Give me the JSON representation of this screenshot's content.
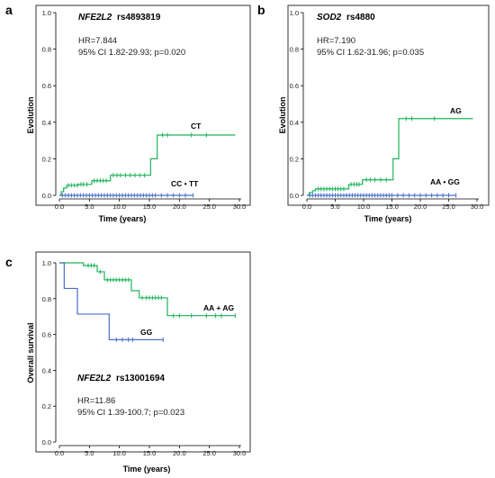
{
  "chart_data": [
    {
      "panel_label": "a",
      "type": "line",
      "step": true,
      "gene": "NFE2L2",
      "snp": "rs4893819",
      "stats": {
        "hr": "HR=7.844",
        "ci": "95% CI 1.82-29.93; p=0.020"
      },
      "xlabel": "Time (years)",
      "ylabel": "Evolution",
      "xlim": [
        0,
        30
      ],
      "ylim": [
        0,
        1.0
      ],
      "xticks": [
        "0.0",
        "5.0",
        "10.0",
        "15.0",
        "20.0",
        "25.0",
        "30.0"
      ],
      "yticks": [
        "0.0",
        "0.2",
        "0.4",
        "0.6",
        "0.8",
        "1.0"
      ],
      "series": [
        {
          "name": "CT",
          "color": "#1db35a",
          "x": [
            0,
            0.3,
            0.7,
            1.2,
            3.2,
            5.4,
            8.5,
            15.2,
            16.3,
            29.3
          ],
          "y": [
            0,
            0.02,
            0.04,
            0.055,
            0.06,
            0.08,
            0.11,
            0.2,
            0.33,
            0.33
          ],
          "censored_x": [
            1.5,
            2.0,
            2.5,
            3.0,
            3.6,
            4.0,
            4.6,
            5.8,
            6.3,
            6.8,
            7.3,
            7.8,
            9.0,
            9.6,
            10.2,
            11.0,
            11.8,
            12.6,
            13.4,
            14.2,
            17.2,
            18.0,
            22.0,
            24.5
          ]
        },
        {
          "name": "CC • TT",
          "color": "#4a6fc9",
          "x": [
            0,
            22.3
          ],
          "y": [
            0,
            0
          ],
          "censored_x": [
            0.5,
            1.0,
            1.5,
            2.0,
            2.5,
            3.0,
            3.5,
            4.0,
            4.5,
            5.0,
            5.5,
            6.0,
            6.5,
            7.0,
            7.5,
            8.0,
            8.5,
            9.0,
            9.5,
            10.0,
            10.5,
            11.0,
            11.5,
            12.0,
            12.5,
            13.0,
            13.5,
            14.0,
            14.5,
            15.0,
            15.5,
            16.0,
            17.0,
            18.0,
            19.0,
            20.0,
            21.0,
            22.3
          ]
        }
      ]
    },
    {
      "panel_label": "b",
      "type": "line",
      "step": true,
      "gene": "SOD2",
      "snp": "rs4880",
      "stats": {
        "hr": "HR=7.190",
        "ci": "95% CI 1.62-31.96; p=0.035"
      },
      "xlabel": "Time (years)",
      "ylabel": "Evolution",
      "xlim": [
        0,
        30
      ],
      "ylim": [
        0,
        1.0
      ],
      "xticks": [
        "0.0",
        "5.0",
        "10.0",
        "15.0",
        "20.0",
        "25.0",
        "30.0"
      ],
      "yticks": [
        "0.0",
        "0.2",
        "0.4",
        "0.6",
        "0.8",
        "1.0"
      ],
      "series": [
        {
          "name": "AG",
          "color": "#1db35a",
          "x": [
            0,
            0.4,
            1.0,
            1.5,
            7.4,
            9.8,
            15.2,
            16.2,
            29.3
          ],
          "y": [
            0,
            0.015,
            0.025,
            0.035,
            0.06,
            0.085,
            0.2,
            0.42,
            0.42
          ],
          "censored_x": [
            2.0,
            2.5,
            3.0,
            3.5,
            4.0,
            4.5,
            5.0,
            5.5,
            6.0,
            6.5,
            7.8,
            8.3,
            8.8,
            9.2,
            10.5,
            11.2,
            12.0,
            13.0,
            14.0,
            17.5,
            18.5,
            22.5
          ]
        },
        {
          "name": "AA • GG",
          "color": "#4a6fc9",
          "x": [
            0,
            26.3
          ],
          "y": [
            0,
            0
          ],
          "censored_x": [
            0.5,
            1.0,
            1.5,
            2.0,
            2.5,
            3.0,
            3.5,
            4.0,
            4.5,
            5.0,
            5.5,
            6.0,
            6.5,
            7.0,
            7.5,
            8.0,
            8.5,
            9.0,
            9.5,
            10.0,
            10.5,
            11.0,
            11.5,
            12.0,
            12.5,
            13.0,
            13.5,
            14.0,
            14.5,
            15.0,
            16.0,
            17.0,
            18.0,
            19.0,
            20.0,
            21.0,
            22.0,
            23.0,
            24.0,
            25.0,
            26.3
          ]
        }
      ]
    },
    {
      "panel_label": "c",
      "type": "line",
      "step": true,
      "gene": "NFE2L2",
      "snp": "rs13001694",
      "stats": {
        "hr": "HR=11.86",
        "ci": "95% CI 1.39-100.7; p=0.023"
      },
      "xlabel": "Time (years)",
      "ylabel": "Overall survival",
      "xlim": [
        0,
        30
      ],
      "ylim": [
        0,
        1.0
      ],
      "xticks": [
        "0.0",
        "5.0",
        "10.0",
        "15.0",
        "20.0",
        "25.0",
        "30.0"
      ],
      "yticks": [
        "0.0",
        "0.2",
        "0.4",
        "0.6",
        "0.8",
        "1.0"
      ],
      "series": [
        {
          "name": "AA + AG",
          "color": "#1db35a",
          "x": [
            0,
            4.0,
            6.3,
            7.5,
            12.0,
            13.3,
            18.0,
            29.3
          ],
          "y": [
            1.0,
            0.985,
            0.95,
            0.905,
            0.845,
            0.805,
            0.705,
            0.705
          ],
          "censored_x": [
            4.8,
            5.3,
            5.8,
            6.8,
            8.0,
            8.5,
            9.0,
            9.5,
            10.0,
            10.5,
            11.0,
            11.5,
            13.8,
            14.5,
            15.0,
            15.5,
            16.0,
            16.5,
            17.0,
            19.0,
            20.0,
            22.0,
            24.5,
            26.0,
            27.0,
            29.3
          ]
        },
        {
          "name": "GG",
          "color": "#4a6fc9",
          "x": [
            0,
            0.8,
            3.0,
            8.3,
            17.3
          ],
          "y": [
            1.0,
            0.857,
            0.714,
            0.571,
            0.571
          ],
          "censored_x": [
            9.5,
            10.5,
            11.5,
            12.2,
            17.3
          ]
        }
      ]
    }
  ]
}
